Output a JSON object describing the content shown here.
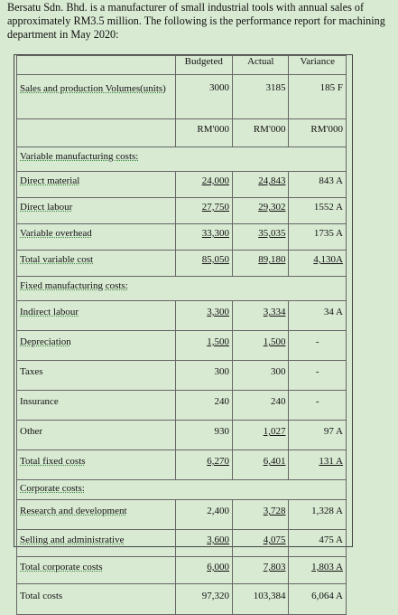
{
  "intro": "Bersatu Sdn. Bhd. is a manufacturer of small industrial tools with annual sales of approximately RM3.5 million. The following is the performance report for machining department in May 2020:",
  "headers": {
    "budgeted": "Budgeted",
    "actual": "Actual",
    "variance": "Variance"
  },
  "sales": {
    "label": "Sales and production Volumes(units)",
    "budgeted": "3000",
    "actual": "3185",
    "variance": "185 F"
  },
  "units": {
    "budgeted": "RM'000",
    "actual": "RM'000",
    "variance": "RM'000"
  },
  "variable": {
    "title": "Variable manufacturing costs:",
    "rows": [
      {
        "label": "Direct material",
        "budgeted": "24,000",
        "actual": "24,843",
        "variance": "843 A"
      },
      {
        "label": "Direct labour",
        "budgeted": "27,750",
        "actual": "29,302",
        "variance": "1552 A"
      },
      {
        "label": "Variable overhead",
        "budgeted": "33,300",
        "actual": "35,035",
        "variance": "1735 A"
      },
      {
        "label": "Total variable cost",
        "budgeted": "85,050",
        "actual": "89,180",
        "variance": "4,130A"
      }
    ]
  },
  "fixed": {
    "title": "Fixed manufacturing costs:",
    "rows": [
      {
        "label": "Indirect labour",
        "budgeted": "3,300",
        "actual": "3,334",
        "variance": "34 A"
      },
      {
        "label": "Depreciation",
        "budgeted": "1,500",
        "actual": "1,500",
        "variance": "-"
      },
      {
        "label": "Taxes",
        "budgeted": "300",
        "actual": "300",
        "variance": "-"
      },
      {
        "label": "Insurance",
        "budgeted": "240",
        "actual": "240",
        "variance": "-"
      },
      {
        "label": "Other",
        "budgeted": "930",
        "actual": "1,027",
        "variance": "97 A"
      },
      {
        "label": "Total fixed costs",
        "budgeted": "6,270",
        "actual": "6,401",
        "variance": "131 A"
      }
    ]
  },
  "corporate": {
    "title": "Corporate costs:",
    "rows": [
      {
        "label": "Research and development",
        "budgeted": "2,400",
        "actual": "3,728",
        "variance": "1,328 A"
      },
      {
        "label": "Selling and administrative",
        "budgeted": "3,600",
        "actual": "4,075",
        "variance": "475 A"
      },
      {
        "label": "Total corporate costs",
        "budgeted": "6,000",
        "actual": "7,803",
        "variance": "1,803 A"
      }
    ]
  },
  "total": {
    "label": "Total costs",
    "budgeted": "97,320",
    "actual": "103,384",
    "variance": "6,064 A"
  }
}
